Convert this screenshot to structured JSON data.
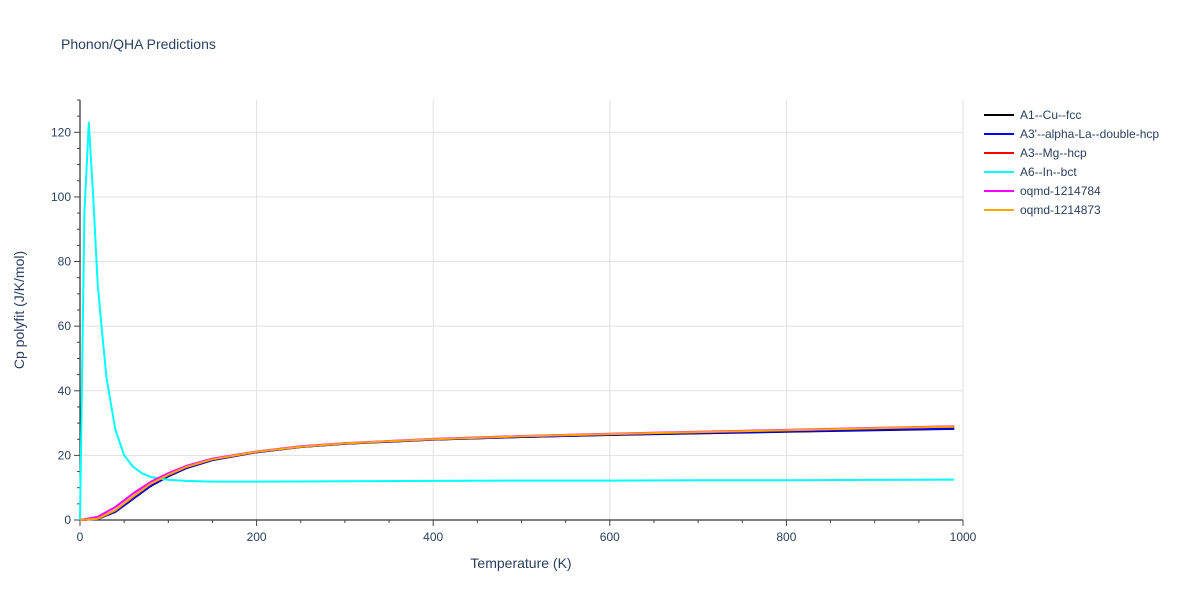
{
  "chart_data": {
    "type": "line",
    "title": "Phonon/QHA Predictions",
    "xlabel": "Temperature (K)",
    "ylabel": "Cp polyfit (J/K/mol)",
    "xlim": [
      0,
      1000
    ],
    "ylim": [
      0,
      130
    ],
    "xticks": [
      0,
      200,
      400,
      600,
      800,
      1000
    ],
    "yticks": [
      0,
      20,
      40,
      60,
      80,
      100,
      120
    ],
    "grid": true,
    "legend_position": "right",
    "series": [
      {
        "name": "A1--Cu--fcc",
        "color": "#000000",
        "x": [
          0,
          20,
          40,
          60,
          80,
          100,
          120,
          150,
          200,
          250,
          300,
          400,
          500,
          600,
          700,
          800,
          900,
          990
        ],
        "y": [
          0,
          0.3,
          2.5,
          6.5,
          10.5,
          13.5,
          16,
          18.5,
          21,
          22.6,
          23.6,
          24.9,
          25.7,
          26.3,
          26.8,
          27.3,
          27.8,
          28.2
        ]
      },
      {
        "name": "A3'--alpha-La--double-hcp",
        "color": "#0000ff",
        "x": [
          0,
          20,
          40,
          60,
          80,
          100,
          120,
          150,
          200,
          250,
          300,
          400,
          500,
          600,
          700,
          800,
          900,
          990
        ],
        "y": [
          0,
          0.3,
          2.6,
          6.6,
          10.6,
          13.6,
          16.1,
          18.6,
          21,
          22.6,
          23.6,
          24.9,
          25.7,
          26.4,
          26.9,
          27.4,
          27.9,
          28.3
        ]
      },
      {
        "name": "A3--Mg--hcp",
        "color": "#ff0000",
        "x": [
          0,
          20,
          40,
          60,
          80,
          100,
          120,
          150,
          200,
          250,
          300,
          400,
          500,
          600,
          700,
          800,
          900,
          990
        ],
        "y": [
          0,
          0.4,
          3,
          7.2,
          11.2,
          14,
          16.4,
          18.8,
          21.1,
          22.7,
          23.7,
          25,
          25.9,
          26.6,
          27.2,
          27.8,
          28.4,
          28.9
        ]
      },
      {
        "name": "A6--In--bct",
        "color": "#00ffff",
        "x": [
          0,
          5,
          10,
          15,
          20,
          25,
          30,
          40,
          50,
          60,
          70,
          80,
          100,
          120,
          150,
          200,
          300,
          400,
          500,
          600,
          700,
          800,
          900,
          990
        ],
        "y": [
          0,
          95,
          123,
          100,
          73,
          58,
          44,
          28,
          20,
          16.5,
          14.5,
          13.3,
          12.4,
          12.1,
          11.9,
          11.9,
          12,
          12.1,
          12.2,
          12.2,
          12.3,
          12.3,
          12.4,
          12.5
        ]
      },
      {
        "name": "oqmd-1214784",
        "color": "#ff00ff",
        "x": [
          0,
          20,
          40,
          60,
          80,
          100,
          120,
          150,
          200,
          250,
          300,
          400,
          500,
          600,
          700,
          800,
          900,
          990
        ],
        "y": [
          0,
          1,
          4,
          8.2,
          11.8,
          14.5,
          16.7,
          19,
          21.2,
          22.8,
          23.8,
          25.1,
          26,
          26.7,
          27.3,
          27.9,
          28.5,
          29
        ]
      },
      {
        "name": "oqmd-1214873",
        "color": "#ffa500",
        "x": [
          0,
          20,
          40,
          60,
          80,
          100,
          120,
          150,
          200,
          250,
          300,
          400,
          500,
          600,
          700,
          800,
          900,
          990
        ],
        "y": [
          0,
          0.4,
          3,
          7.2,
          11.2,
          14,
          16.4,
          18.8,
          21.1,
          22.7,
          23.7,
          25,
          25.9,
          26.6,
          27.2,
          27.8,
          28.4,
          28.9
        ]
      }
    ]
  }
}
